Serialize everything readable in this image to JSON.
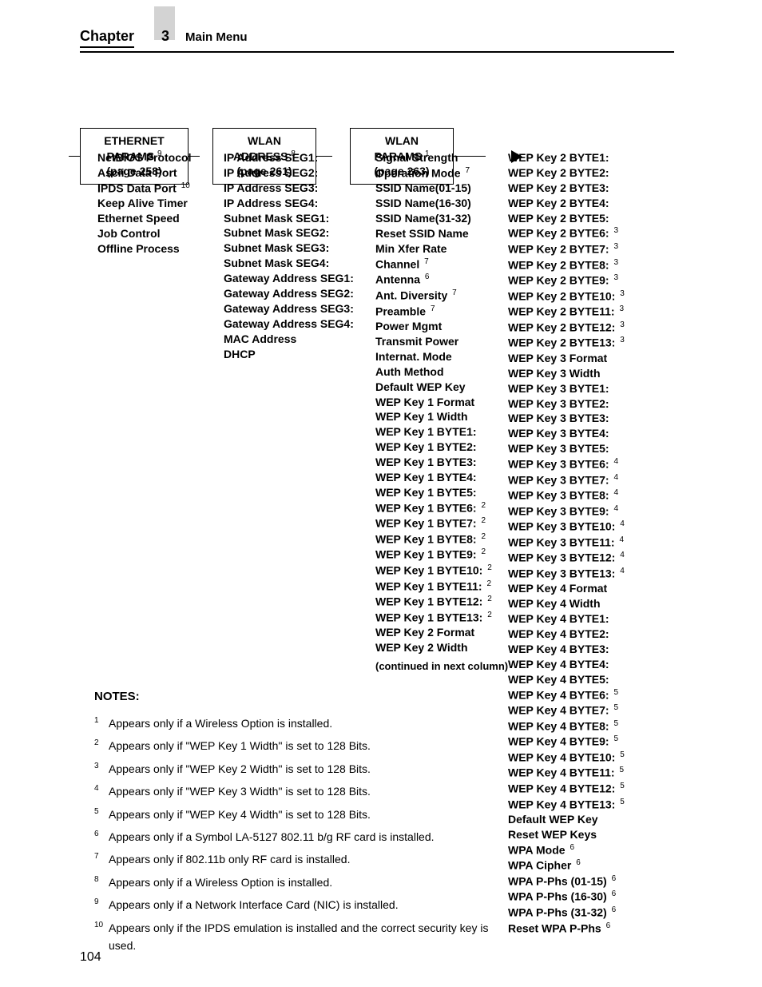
{
  "header": {
    "chapter_word": "Chapter",
    "chapter_num": "3",
    "section_title": "Main Menu"
  },
  "boxes": {
    "b1": {
      "l1": "ETHERNET",
      "l2": "PARAMS",
      "sup": "9",
      "l3": "(page 258)"
    },
    "b2": {
      "l1": "WLAN",
      "l2": "ADDRESS",
      "sup": "8",
      "l3": "(page 261)"
    },
    "b3": {
      "l1": "WLAN",
      "l2": "PARAMS",
      "sup": "1",
      "l3": "(page 263)"
    }
  },
  "col1": [
    {
      "t": "NetBIOS Protocol"
    },
    {
      "t": "Ascii Data Port"
    },
    {
      "t": "IPDS Data Port",
      "s": "10"
    },
    {
      "t": "Keep Alive Timer"
    },
    {
      "t": "Ethernet Speed"
    },
    {
      "t": "Job Control"
    },
    {
      "t": "Offline Process"
    }
  ],
  "col2": [
    {
      "t": "IP Address SEG1:"
    },
    {
      "t": "IP Address SEG2:"
    },
    {
      "t": "IP Address SEG3:"
    },
    {
      "t": "IP Address SEG4:"
    },
    {
      "t": "Subnet Mask SEG1:"
    },
    {
      "t": "Subnet Mask SEG2:"
    },
    {
      "t": "Subnet Mask SEG3:"
    },
    {
      "t": "Subnet Mask SEG4:"
    },
    {
      "t": "Gateway Address SEG1:"
    },
    {
      "t": "Gateway Address SEG2:"
    },
    {
      "t": "Gateway Address SEG3:"
    },
    {
      "t": "Gateway Address SEG4:"
    },
    {
      "t": "MAC Address"
    },
    {
      "t": "DHCP"
    }
  ],
  "col3": [
    {
      "t": "Signal Strength"
    },
    {
      "t": "Operation Mode",
      "s": "7"
    },
    {
      "t": "SSID Name(01-15)"
    },
    {
      "t": "SSID Name(16-30)"
    },
    {
      "t": "SSID Name(31-32)"
    },
    {
      "t": "Reset SSID Name"
    },
    {
      "t": "Min Xfer Rate"
    },
    {
      "t": "Channel",
      "s": "7"
    },
    {
      "t": "Antenna",
      "s": "6"
    },
    {
      "t": "Ant. Diversity",
      "s": "7"
    },
    {
      "t": "Preamble",
      "s": "7"
    },
    {
      "t": "Power Mgmt"
    },
    {
      "t": "Transmit Power"
    },
    {
      "t": "Internat. Mode"
    },
    {
      "t": "Auth Method"
    },
    {
      "t": "Default WEP Key"
    },
    {
      "t": "WEP Key 1 Format"
    },
    {
      "t": "WEP Key 1 Width"
    },
    {
      "t": "WEP Key 1 BYTE1:"
    },
    {
      "t": "WEP Key 1 BYTE2:"
    },
    {
      "t": "WEP Key 1 BYTE3:"
    },
    {
      "t": "WEP Key 1 BYTE4:"
    },
    {
      "t": "WEP Key 1 BYTE5:"
    },
    {
      "t": "WEP Key 1 BYTE6:",
      "s": "2"
    },
    {
      "t": "WEP Key 1 BYTE7:",
      "s": "2"
    },
    {
      "t": "WEP Key 1 BYTE8:",
      "s": "2"
    },
    {
      "t": "WEP Key 1 BYTE9:",
      "s": "2"
    },
    {
      "t": "WEP Key 1 BYTE10:",
      "s": "2"
    },
    {
      "t": "WEP Key 1 BYTE11:",
      "s": "2"
    },
    {
      "t": "WEP Key 1 BYTE12:",
      "s": "2"
    },
    {
      "t": "WEP Key 1 BYTE13:",
      "s": "2"
    },
    {
      "t": "WEP Key 2 Format"
    },
    {
      "t": "WEP Key 2 Width"
    }
  ],
  "col3_cont": "(continued in next column)",
  "col4": [
    {
      "t": "WEP Key 2 BYTE1:"
    },
    {
      "t": "WEP Key 2 BYTE2:"
    },
    {
      "t": "WEP Key 2 BYTE3:"
    },
    {
      "t": "WEP Key 2 BYTE4:"
    },
    {
      "t": "WEP Key 2 BYTE5:"
    },
    {
      "t": "WEP Key 2 BYTE6:",
      "s": "3"
    },
    {
      "t": "WEP Key 2 BYTE7:",
      "s": "3"
    },
    {
      "t": "WEP Key 2 BYTE8:",
      "s": "3"
    },
    {
      "t": "WEP Key 2 BYTE9:",
      "s": "3"
    },
    {
      "t": "WEP Key 2 BYTE10:",
      "s": "3"
    },
    {
      "t": "WEP Key 2 BYTE11:",
      "s": "3"
    },
    {
      "t": "WEP Key 2 BYTE12:",
      "s": "3"
    },
    {
      "t": "WEP Key 2 BYTE13:",
      "s": "3"
    },
    {
      "t": "WEP Key 3 Format"
    },
    {
      "t": "WEP Key 3 Width"
    },
    {
      "t": "WEP Key 3 BYTE1:"
    },
    {
      "t": "WEP Key 3 BYTE2:"
    },
    {
      "t": "WEP Key 3 BYTE3:"
    },
    {
      "t": "WEP Key 3 BYTE4:"
    },
    {
      "t": "WEP Key 3 BYTE5:"
    },
    {
      "t": "WEP Key 3 BYTE6:",
      "s": "4"
    },
    {
      "t": "WEP Key 3 BYTE7:",
      "s": "4"
    },
    {
      "t": "WEP Key 3 BYTE8:",
      "s": "4"
    },
    {
      "t": "WEP Key 3 BYTE9:",
      "s": "4"
    },
    {
      "t": "WEP Key 3 BYTE10:",
      "s": "4"
    },
    {
      "t": "WEP Key 3 BYTE11:",
      "s": "4"
    },
    {
      "t": "WEP Key 3 BYTE12:",
      "s": "4"
    },
    {
      "t": "WEP Key 3 BYTE13:",
      "s": "4"
    },
    {
      "t": "WEP Key 4 Format"
    },
    {
      "t": "WEP Key 4 Width"
    },
    {
      "t": "WEP Key 4 BYTE1:"
    },
    {
      "t": "WEP Key 4 BYTE2:"
    },
    {
      "t": "WEP Key 4 BYTE3:"
    },
    {
      "t": "WEP Key 4 BYTE4:"
    },
    {
      "t": "WEP Key 4 BYTE5:"
    },
    {
      "t": "WEP Key 4 BYTE6:",
      "s": "5"
    },
    {
      "t": "WEP Key 4 BYTE7:",
      "s": "5"
    },
    {
      "t": "WEP Key 4 BYTE8:",
      "s": "5"
    },
    {
      "t": "WEP Key 4 BYTE9:",
      "s": "5"
    },
    {
      "t": "WEP Key 4 BYTE10:",
      "s": "5"
    },
    {
      "t": "WEP Key 4 BYTE11:",
      "s": "5"
    },
    {
      "t": "WEP Key 4 BYTE12:",
      "s": "5"
    },
    {
      "t": "WEP Key 4 BYTE13:",
      "s": "5"
    },
    {
      "t": "Default WEP Key"
    },
    {
      "t": "Reset WEP Keys"
    },
    {
      "t": "WPA Mode",
      "s": "6"
    },
    {
      "t": "WPA Cipher",
      "s": "6"
    },
    {
      "t": "WPA P-Phs (01-15)",
      "s": "6"
    },
    {
      "t": "WPA P-Phs (16-30)",
      "s": "6"
    },
    {
      "t": "WPA P-Phs (31-32)",
      "s": "6"
    },
    {
      "t": "Reset WPA P-Phs",
      "s": "6"
    }
  ],
  "notes": {
    "heading": "NOTES:",
    "items": [
      {
        "s": "1",
        "t": "Appears only if a Wireless Option is installed."
      },
      {
        "s": "2",
        "t": "Appears only if \"WEP Key 1 Width\" is set to 128 Bits."
      },
      {
        "s": "3",
        "t": "Appears only if \"WEP Key 2 Width\" is set to 128 Bits."
      },
      {
        "s": "4",
        "t": "Appears only if \"WEP Key 3 Width\" is set to 128 Bits."
      },
      {
        "s": "5",
        "t": "Appears only if \"WEP Key 4 Width\" is set to 128 Bits."
      },
      {
        "s": "6",
        "t": "Appears only if a Symbol LA-5127 802.11 b/g RF card is installed."
      },
      {
        "s": "7",
        "t": "Appears only if 802.11b only RF card is installed."
      },
      {
        "s": "8",
        "t": "Appears only if a Wireless Option is installed."
      },
      {
        "s": "9",
        "t": "Appears only if a Network Interface Card (NIC) is installed."
      },
      {
        "s": "10",
        "t": "Appears only if the IPDS emulation is installed and the correct security key is used."
      }
    ]
  },
  "page_number": "104"
}
